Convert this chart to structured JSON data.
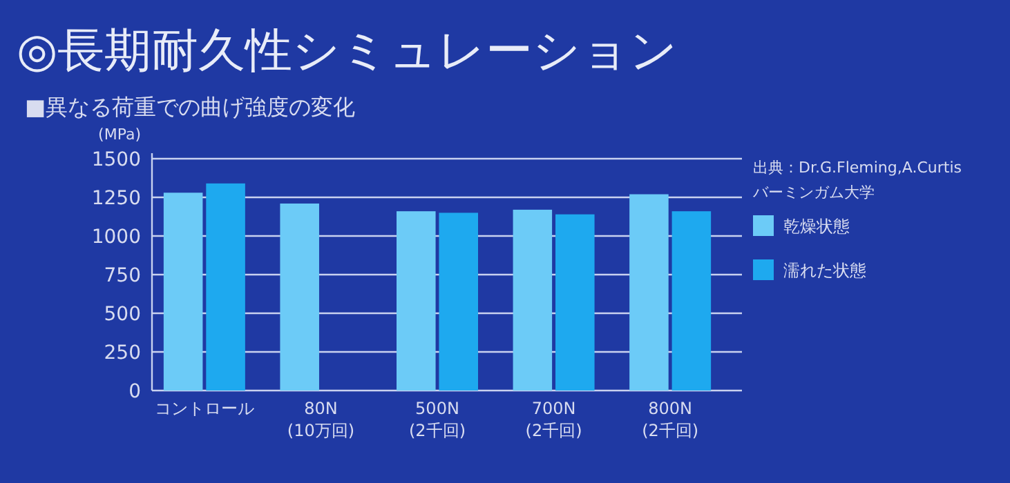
{
  "chart_data": {
    "type": "bar",
    "title": "◎長期耐久性シミュレーション",
    "subtitle": "■異なる荷重での曲げ強度の変化",
    "ylabel": "(MPa)",
    "annotations": [
      "出典：Dr.G.Fleming,A.Curtis\nバーミンガム大学"
    ],
    "categories": [
      "コントロール",
      "80N\n(10万回)",
      "500N\n(2千回)",
      "700N\n(2千回)",
      "800N\n(2千回)"
    ],
    "series": [
      {
        "name": "乾燥状態",
        "color": "#6ccbf7",
        "values": [
          1280,
          1210,
          1160,
          1170,
          1270
        ]
      },
      {
        "name": "濡れた状態",
        "color": "#1ea9ef",
        "values": [
          1340,
          null,
          1150,
          1140,
          1160
        ]
      }
    ],
    "ylim": [
      0,
      1500
    ],
    "yticks": [
      0,
      250,
      500,
      750,
      1000,
      1250,
      1500
    ],
    "grid": "y",
    "legend": "right"
  }
}
